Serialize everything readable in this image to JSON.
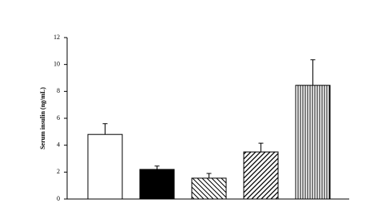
{
  "chart_data": {
    "type": "bar",
    "y_label": "Serum insulin (ng/mL)",
    "categories": [
      null,
      null,
      null,
      null,
      null
    ],
    "values": [
      4.8,
      2.2,
      1.55,
      3.5,
      8.45
    ],
    "errors": [
      0.8,
      0.25,
      0.35,
      0.65,
      1.9
    ],
    "bar_styles": [
      "white",
      "black",
      "hatch-back",
      "hatch-forward",
      "hatch-vertical"
    ],
    "color": "#000000",
    "ylim": [
      0,
      12
    ],
    "yticks": [
      0,
      2,
      4,
      6,
      8,
      10,
      12
    ],
    "grid": false
  }
}
